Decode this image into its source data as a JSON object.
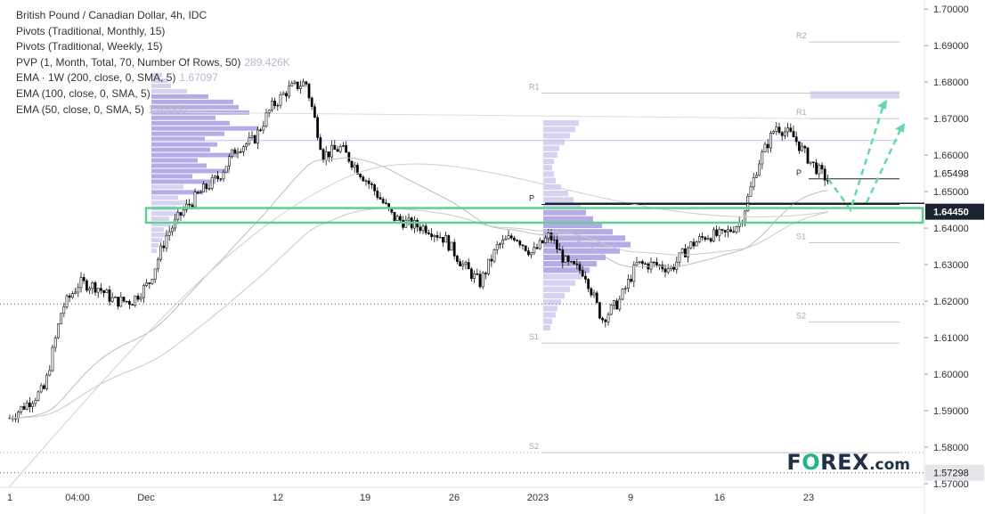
{
  "legend": {
    "symbol": "British Pound / Canadian Dollar, 4h, IDC",
    "pivots_monthly": "Pivots (Traditional, Monthly, 15)",
    "pivots_weekly": "Pivots (Traditional, Weekly, 15)",
    "pvp": "PVP (1, Month, Total, 70, Number Of Rows, 50)",
    "pvp_value": "289.426K",
    "ema200": "EMA · 1W (200, close, 0, SMA, 5)",
    "ema200_value": "1.67097",
    "ema100": "EMA (100, close, 0, SMA, 5)",
    "ema50": "EMA (50, close, 0, SMA, 5)",
    "ema50_value": "1.65000"
  },
  "brand": {
    "part1": "F",
    "part2": "O",
    "part3": "REX",
    "part4": ".com"
  },
  "colors": {
    "up_candle": "#ffffff",
    "down_candle": "#000000",
    "outline": "#111111",
    "zone": "#5fcf94",
    "arrow": "#66d7a7",
    "volume_profile": "#9d8ee0",
    "current_price_label": "#1d2230",
    "ema": "#b9b9b9"
  },
  "chart_data": {
    "type": "candlestick",
    "title": "British Pound / Canadian Dollar, 4h, IDC",
    "y_ticks": [
      "1.70000",
      "1.69000",
      "1.68000",
      "1.67000",
      "1.66000",
      "1.65000",
      "1.64000",
      "1.63000",
      "1.62000",
      "1.61000",
      "1.60000",
      "1.59000",
      "1.58000",
      "1.57000"
    ],
    "ylim": [
      1.569,
      1.7025
    ],
    "x_ticks": [
      "1",
      "04:00",
      "Dec",
      "12",
      "19",
      "26",
      "2023",
      "9",
      "16",
      "23"
    ],
    "price_labels": [
      {
        "text": "1.65498",
        "value": 1.65498,
        "style": "plain"
      },
      {
        "text": "1.64450",
        "value": 1.6445,
        "style": "current"
      },
      {
        "text": "1.57298",
        "value": 1.57298,
        "style": "gray"
      }
    ],
    "pivot_levels": [
      {
        "label": "R2",
        "value": 1.691,
        "period": "weekly"
      },
      {
        "label": "R1",
        "value": 1.677,
        "period": "monthly"
      },
      {
        "label": "R1",
        "value": 1.67,
        "period": "weekly"
      },
      {
        "label": "P",
        "value": 1.6535,
        "period": "weekly"
      },
      {
        "label": "P",
        "value": 1.6465,
        "period": "monthly"
      },
      {
        "label": "S1",
        "value": 1.636,
        "period": "weekly"
      },
      {
        "label": "S2",
        "value": 1.6143,
        "period": "weekly"
      },
      {
        "label": "S1",
        "value": 1.6085,
        "period": "monthly"
      },
      {
        "label": "S2",
        "value": 1.5785,
        "period": "monthly"
      }
    ],
    "support_zone": [
      1.6415,
      1.6455
    ],
    "series": [
      {
        "name": "GBP/CAD close (approx.)",
        "x": [
          0,
          20,
          40,
          60,
          80,
          100,
          120,
          140,
          160,
          180,
          200,
          220,
          240,
          260,
          280,
          300,
          320,
          340,
          360,
          380,
          400,
          420,
          440,
          460,
          480,
          500,
          520,
          540,
          560,
          580,
          600,
          620,
          640,
          660,
          680,
          700,
          720,
          740,
          760,
          780,
          800,
          820,
          840,
          860,
          880,
          900,
          920,
          940
        ],
        "close": [
          1.588,
          1.592,
          1.596,
          1.618,
          1.625,
          1.624,
          1.62,
          1.62,
          1.625,
          1.638,
          1.645,
          1.65,
          1.654,
          1.662,
          1.664,
          1.673,
          1.678,
          1.68,
          1.66,
          1.662,
          1.656,
          1.65,
          1.643,
          1.641,
          1.64,
          1.637,
          1.63,
          1.625,
          1.635,
          1.638,
          1.633,
          1.638,
          1.63,
          1.628,
          1.615,
          1.62,
          1.63,
          1.63,
          1.629,
          1.635,
          1.638,
          1.638,
          1.642,
          1.658,
          1.668,
          1.665,
          1.658,
          1.653
        ]
      }
    ]
  }
}
